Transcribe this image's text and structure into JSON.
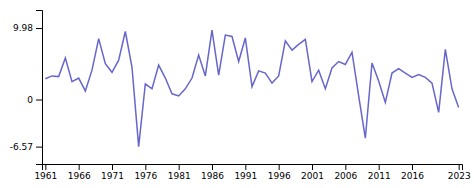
{
  "chart_data": {
    "type": "line",
    "x": [
      1961,
      1962,
      1963,
      1964,
      1965,
      1966,
      1967,
      1968,
      1969,
      1970,
      1971,
      1972,
      1973,
      1974,
      1975,
      1976,
      1977,
      1978,
      1979,
      1980,
      1981,
      1982,
      1983,
      1984,
      1985,
      1986,
      1987,
      1988,
      1989,
      1990,
      1991,
      1992,
      1993,
      1994,
      1995,
      1996,
      1997,
      1998,
      1999,
      2000,
      2001,
      2002,
      2003,
      2004,
      2005,
      2006,
      2007,
      2008,
      2009,
      2010,
      2011,
      2012,
      2013,
      2014,
      2015,
      2016,
      2017,
      2018,
      2019,
      2020,
      2021,
      2022,
      2023
    ],
    "values": [
      2.9,
      3.3,
      3.2,
      5.8,
      2.5,
      3.0,
      1.2,
      4.1,
      8.5,
      5.0,
      3.8,
      5.5,
      9.5,
      4.5,
      -6.57,
      2.2,
      1.5,
      4.8,
      3.0,
      0.8,
      0.5,
      1.5,
      3.0,
      6.2,
      3.3,
      9.7,
      3.4,
      9.0,
      8.8,
      5.3,
      8.6,
      1.8,
      4.0,
      3.7,
      2.3,
      3.3,
      8.2,
      6.9,
      7.7,
      8.4,
      2.5,
      4.1,
      1.5,
      4.4,
      5.3,
      4.9,
      6.6,
      0.5,
      -5.4,
      5.1,
      2.6,
      -0.4,
      3.7,
      4.3,
      3.7,
      3.1,
      3.5,
      3.1,
      2.3,
      -1.8,
      7.0,
      1.5,
      -1.1
    ],
    "color": "#6666cc",
    "xlim": [
      1960.5,
      2023.5
    ],
    "xticks": [
      1961,
      1966,
      1971,
      1976,
      1981,
      1986,
      1991,
      1996,
      2001,
      2006,
      2011,
      2016,
      2023
    ],
    "ylim": [
      -9.0,
      12.5
    ],
    "yticks": [
      -6.57,
      0,
      9.98
    ],
    "grid": false
  }
}
